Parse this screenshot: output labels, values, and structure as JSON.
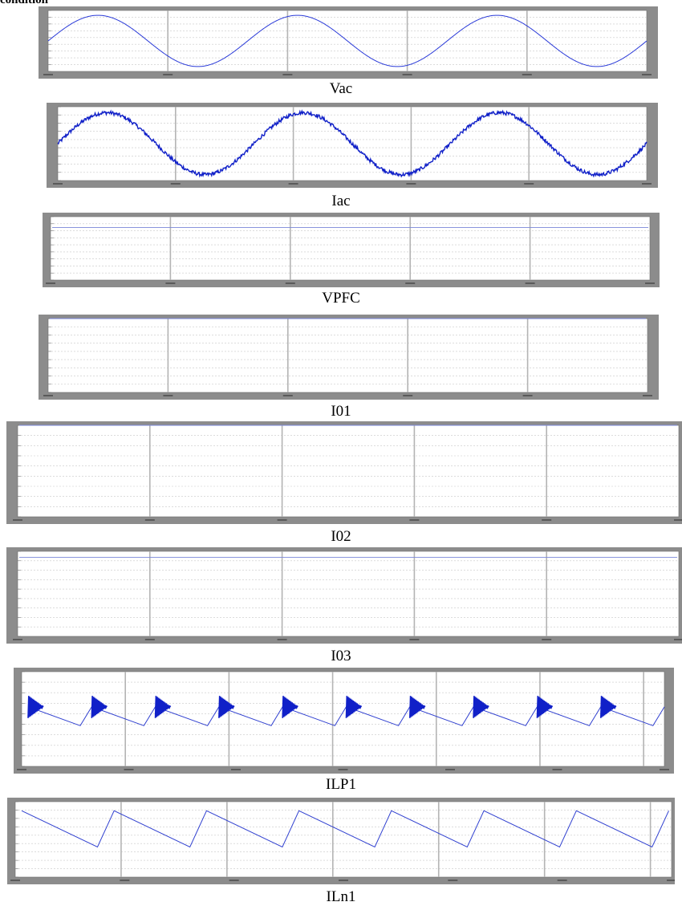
{
  "heading": "condition",
  "chart_data": [
    {
      "type": "line",
      "title": "Vac",
      "waveform": "sine",
      "cycles": 3,
      "start_phase": 0,
      "trace_level": 0,
      "noise": false,
      "grid": true
    },
    {
      "type": "line",
      "title": "Iac",
      "waveform": "sine",
      "cycles": 3,
      "start_phase": 0,
      "trace_level": 0,
      "noise": true,
      "grid": true
    },
    {
      "type": "line",
      "title": "VPFC",
      "waveform": "dc",
      "trace_level": 0.83,
      "grid": true
    },
    {
      "type": "line",
      "title": "I01",
      "waveform": "dc",
      "trace_level": 1.0,
      "grid": true
    },
    {
      "type": "line",
      "title": "I02",
      "waveform": "dc",
      "trace_level": 1.0,
      "grid": true
    },
    {
      "type": "line",
      "title": "I03",
      "waveform": "dc",
      "trace_level": 0.93,
      "grid": true
    },
    {
      "type": "line",
      "title": "ILP1",
      "waveform": "sawtooth",
      "teeth": 10,
      "trace_high": 0.63,
      "trace_low": 0.43,
      "ringing": true,
      "grid": true
    },
    {
      "type": "line",
      "title": "ILn1",
      "waveform": "sawtooth",
      "teeth": 7,
      "trace_high": 0.88,
      "trace_low": 0.4,
      "ringing": false,
      "grid": true
    }
  ]
}
